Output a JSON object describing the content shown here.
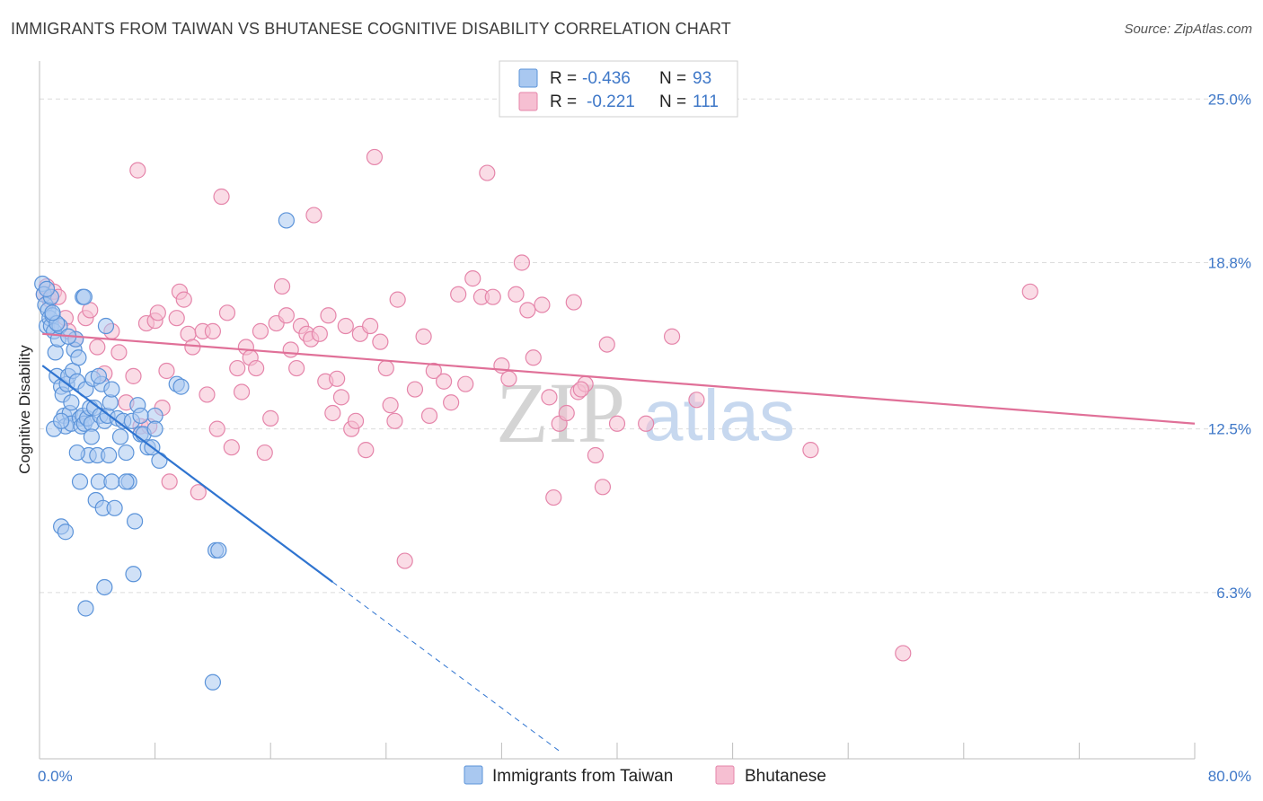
{
  "title": "IMMIGRANTS FROM TAIWAN VS BHUTANESE COGNITIVE DISABILITY CORRELATION CHART",
  "source": "Source: ZipAtlas.com",
  "watermark": {
    "zip": "ZIP",
    "atlas": "atlas"
  },
  "colors": {
    "taiwan_fill": "#a9c8f0",
    "taiwan_stroke": "#5b93d9",
    "taiwan_line": "#2f74d0",
    "bhutan_fill": "#f6bfd2",
    "bhutan_stroke": "#e585aa",
    "bhutan_line": "#e07098",
    "grid": "#dcdcdc",
    "accent": "#3f78c8"
  },
  "legend": {
    "rows": [
      {
        "r_label": "R =",
        "r_value": "-0.436",
        "n_label": "N =",
        "n_value": "93"
      },
      {
        "r_label": "R =",
        "r_value": "-0.221",
        "n_label": "N =",
        "n_value": "111"
      }
    ]
  },
  "chart_data": {
    "type": "scatter",
    "title": "IMMIGRANTS FROM TAIWAN VS BHUTANESE COGNITIVE DISABILITY CORRELATION CHART",
    "xlabel": "",
    "ylabel": "Cognitive Disability",
    "xlim": [
      0,
      80
    ],
    "ylim": [
      0,
      26.2
    ],
    "x_tick_labels": [
      "0.0%",
      "80.0%"
    ],
    "y_ticks": [
      6.3,
      12.5,
      18.8,
      25.0
    ],
    "y_tick_labels": [
      "6.3%",
      "12.5%",
      "18.8%",
      "25.0%"
    ],
    "grid": true,
    "legend_position": "top-center",
    "series": [
      {
        "name": "Immigrants from Taiwan",
        "R": -0.436,
        "N": 93,
        "trend": {
          "x0": 0.2,
          "y0": 14.9,
          "x1": 20.3,
          "y1": 6.7,
          "dash_x1": 36.0
        },
        "points": [
          [
            0.2,
            18.0
          ],
          [
            0.3,
            17.6
          ],
          [
            0.4,
            17.2
          ],
          [
            0.5,
            16.4
          ],
          [
            0.6,
            17.0
          ],
          [
            0.7,
            16.7
          ],
          [
            0.8,
            16.4
          ],
          [
            0.9,
            16.8
          ],
          [
            1.0,
            16.2
          ],
          [
            1.1,
            15.4
          ],
          [
            1.2,
            14.5
          ],
          [
            1.3,
            15.9
          ],
          [
            1.4,
            16.4
          ],
          [
            1.5,
            14.1
          ],
          [
            1.6,
            13.8
          ],
          [
            1.7,
            13.0
          ],
          [
            1.8,
            12.6
          ],
          [
            1.9,
            14.2
          ],
          [
            2.0,
            14.5
          ],
          [
            2.1,
            13.1
          ],
          [
            2.2,
            12.7
          ],
          [
            2.3,
            14.7
          ],
          [
            2.4,
            15.5
          ],
          [
            2.5,
            15.9
          ],
          [
            2.6,
            14.3
          ],
          [
            2.7,
            15.2
          ],
          [
            2.8,
            12.9
          ],
          [
            2.9,
            12.6
          ],
          [
            3.0,
            13.0
          ],
          [
            3.1,
            12.7
          ],
          [
            3.2,
            14.0
          ],
          [
            3.3,
            12.9
          ],
          [
            3.4,
            11.5
          ],
          [
            3.5,
            13.3
          ],
          [
            3.6,
            12.7
          ],
          [
            3.7,
            14.4
          ],
          [
            3.8,
            13.3
          ],
          [
            3.9,
            9.8
          ],
          [
            4.0,
            11.5
          ],
          [
            4.1,
            10.5
          ],
          [
            4.2,
            13.0
          ],
          [
            4.3,
            14.2
          ],
          [
            4.4,
            9.5
          ],
          [
            4.5,
            12.8
          ],
          [
            4.6,
            16.4
          ],
          [
            4.7,
            13.0
          ],
          [
            4.8,
            11.5
          ],
          [
            4.9,
            13.5
          ],
          [
            5.0,
            14.0
          ],
          [
            5.2,
            9.5
          ],
          [
            5.4,
            12.9
          ],
          [
            5.6,
            12.2
          ],
          [
            5.8,
            12.8
          ],
          [
            6.0,
            11.6
          ],
          [
            6.2,
            10.5
          ],
          [
            6.4,
            12.8
          ],
          [
            6.6,
            9.0
          ],
          [
            6.8,
            13.4
          ],
          [
            7.0,
            12.3
          ],
          [
            7.2,
            12.3
          ],
          [
            7.5,
            11.8
          ],
          [
            7.8,
            11.8
          ],
          [
            8.0,
            13.0
          ],
          [
            8.3,
            11.3
          ],
          [
            9.5,
            14.2
          ],
          [
            9.8,
            14.1
          ],
          [
            12.2,
            7.9
          ],
          [
            12.4,
            7.9
          ],
          [
            17.1,
            20.4
          ],
          [
            1.5,
            8.8
          ],
          [
            1.8,
            8.6
          ],
          [
            3.2,
            5.7
          ],
          [
            4.5,
            6.5
          ],
          [
            6.5,
            7.0
          ],
          [
            12.0,
            2.9
          ],
          [
            0.8,
            17.5
          ],
          [
            1.2,
            16.5
          ],
          [
            2.0,
            16.0
          ],
          [
            3.0,
            17.5
          ],
          [
            3.1,
            17.5
          ],
          [
            5.0,
            10.5
          ],
          [
            6.0,
            10.5
          ],
          [
            7.0,
            13.0
          ],
          [
            8.0,
            12.5
          ],
          [
            2.8,
            10.5
          ],
          [
            1.0,
            12.5
          ],
          [
            1.5,
            12.8
          ],
          [
            2.2,
            13.5
          ],
          [
            3.6,
            12.2
          ],
          [
            4.1,
            14.5
          ],
          [
            0.5,
            17.8
          ],
          [
            0.9,
            16.9
          ],
          [
            2.6,
            11.6
          ]
        ]
      },
      {
        "name": "Bhutanese",
        "R": -0.221,
        "N": 111,
        "trend": {
          "x0": 0.2,
          "y0": 16.1,
          "x1": 80.0,
          "y1": 12.7
        },
        "points": [
          [
            0.3,
            17.6
          ],
          [
            0.5,
            17.9
          ],
          [
            0.7,
            17.4
          ],
          [
            1.0,
            17.7
          ],
          [
            1.3,
            17.5
          ],
          [
            1.8,
            16.7
          ],
          [
            2.0,
            16.2
          ],
          [
            2.5,
            15.9
          ],
          [
            3.2,
            16.7
          ],
          [
            3.5,
            17.0
          ],
          [
            4.0,
            15.6
          ],
          [
            4.5,
            14.6
          ],
          [
            5.0,
            16.2
          ],
          [
            5.5,
            15.4
          ],
          [
            6.0,
            13.5
          ],
          [
            6.5,
            14.5
          ],
          [
            6.8,
            22.3
          ],
          [
            7.0,
            12.6
          ],
          [
            7.4,
            16.5
          ],
          [
            7.6,
            12.6
          ],
          [
            8.0,
            16.6
          ],
          [
            8.2,
            16.9
          ],
          [
            8.5,
            13.3
          ],
          [
            8.8,
            14.7
          ],
          [
            9.0,
            10.5
          ],
          [
            9.5,
            16.7
          ],
          [
            9.7,
            17.7
          ],
          [
            10.0,
            17.4
          ],
          [
            10.3,
            16.1
          ],
          [
            10.6,
            15.6
          ],
          [
            11.0,
            10.1
          ],
          [
            11.3,
            16.2
          ],
          [
            11.6,
            13.8
          ],
          [
            12.0,
            16.2
          ],
          [
            12.3,
            12.5
          ],
          [
            12.6,
            21.3
          ],
          [
            13.0,
            16.9
          ],
          [
            13.3,
            11.8
          ],
          [
            13.7,
            14.8
          ],
          [
            14.0,
            13.9
          ],
          [
            14.3,
            15.6
          ],
          [
            14.6,
            15.2
          ],
          [
            15.0,
            14.8
          ],
          [
            15.3,
            16.2
          ],
          [
            15.6,
            11.6
          ],
          [
            16.0,
            12.9
          ],
          [
            16.4,
            16.5
          ],
          [
            16.8,
            17.9
          ],
          [
            17.1,
            16.8
          ],
          [
            17.4,
            15.5
          ],
          [
            17.8,
            14.8
          ],
          [
            18.1,
            16.4
          ],
          [
            18.5,
            16.1
          ],
          [
            18.8,
            15.9
          ],
          [
            19.0,
            20.6
          ],
          [
            19.4,
            16.1
          ],
          [
            19.8,
            14.3
          ],
          [
            20.0,
            16.8
          ],
          [
            20.3,
            13.1
          ],
          [
            20.6,
            14.4
          ],
          [
            20.9,
            13.7
          ],
          [
            21.2,
            16.4
          ],
          [
            21.6,
            12.5
          ],
          [
            21.9,
            12.8
          ],
          [
            22.2,
            16.1
          ],
          [
            22.6,
            11.7
          ],
          [
            22.9,
            16.4
          ],
          [
            23.2,
            22.8
          ],
          [
            23.6,
            15.8
          ],
          [
            24.0,
            14.8
          ],
          [
            24.3,
            13.4
          ],
          [
            24.8,
            17.4
          ],
          [
            25.3,
            7.5
          ],
          [
            26.0,
            14.0
          ],
          [
            26.6,
            16.0
          ],
          [
            27.0,
            13.0
          ],
          [
            27.3,
            14.7
          ],
          [
            28.0,
            14.3
          ],
          [
            29.0,
            17.6
          ],
          [
            29.5,
            14.2
          ],
          [
            30.0,
            18.2
          ],
          [
            30.6,
            17.5
          ],
          [
            31.0,
            22.2
          ],
          [
            31.4,
            17.5
          ],
          [
            32.0,
            14.9
          ],
          [
            32.5,
            14.4
          ],
          [
            33.0,
            17.6
          ],
          [
            33.4,
            18.8
          ],
          [
            33.8,
            17.0
          ],
          [
            34.2,
            15.2
          ],
          [
            34.8,
            17.2
          ],
          [
            35.3,
            13.7
          ],
          [
            35.6,
            9.9
          ],
          [
            36.0,
            12.7
          ],
          [
            36.5,
            13.1
          ],
          [
            37.0,
            17.3
          ],
          [
            37.3,
            13.9
          ],
          [
            37.8,
            14.2
          ],
          [
            38.5,
            11.5
          ],
          [
            39.0,
            10.3
          ],
          [
            39.3,
            15.7
          ],
          [
            40.0,
            12.7
          ],
          [
            42.0,
            12.7
          ],
          [
            43.8,
            16.0
          ],
          [
            45.5,
            13.6
          ],
          [
            53.4,
            11.7
          ],
          [
            59.8,
            4.0
          ],
          [
            68.6,
            17.7
          ],
          [
            37.5,
            14.0
          ],
          [
            28.5,
            13.5
          ],
          [
            24.6,
            12.8
          ]
        ]
      }
    ]
  },
  "bottom_legend": [
    {
      "label": "Immigrants from Taiwan"
    },
    {
      "label": "Bhutanese"
    }
  ]
}
